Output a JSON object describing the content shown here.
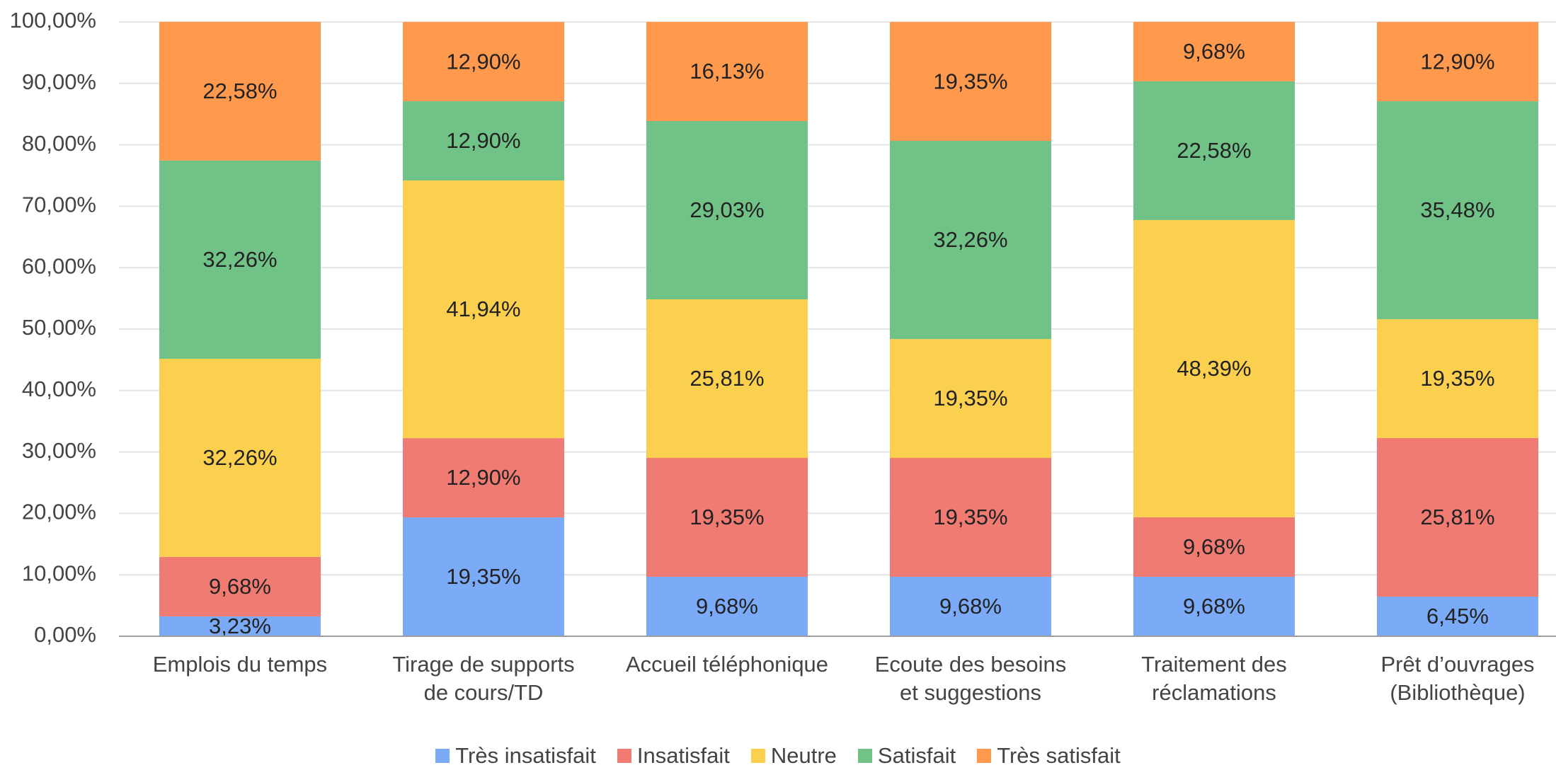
{
  "chart_data": {
    "type": "stacked_bar",
    "categories": [
      "Emplois du temps",
      "Tirage de supports de cours/TD",
      "Accueil téléphonique",
      "Ecoute des besoins et suggestions",
      "Traitement des réclamations",
      "Prêt d’ouvrages (Bibliothèque)"
    ],
    "series": [
      {
        "name": "Très insatisfait",
        "color": "#7baaf7",
        "values": [
          3.23,
          19.35,
          9.68,
          9.68,
          9.68,
          6.45
        ],
        "value_labels": [
          "3,23%",
          "19,35%",
          "9,68%",
          "9,68%",
          "9,68%",
          "6,45%"
        ]
      },
      {
        "name": "Insatisfait",
        "color": "#f07b72",
        "values": [
          9.68,
          12.9,
          19.35,
          19.35,
          9.68,
          25.81
        ],
        "value_labels": [
          "9,68%",
          "12,90%",
          "19,35%",
          "19,35%",
          "9,68%",
          "25,81%"
        ]
      },
      {
        "name": "Neutre",
        "color": "#fcd04f",
        "values": [
          32.26,
          41.94,
          25.81,
          19.35,
          48.39,
          19.35
        ],
        "value_labels": [
          "32,26%",
          "41,94%",
          "25,81%",
          "19,35%",
          "48,39%",
          "19,35%"
        ]
      },
      {
        "name": "Satisfait",
        "color": "#71c287",
        "values": [
          32.26,
          12.9,
          29.03,
          32.26,
          22.58,
          35.48
        ],
        "value_labels": [
          "32,26%",
          "12,90%",
          "29,03%",
          "32,26%",
          "22,58%",
          "35,48%"
        ]
      },
      {
        "name": "Très satisfait",
        "color": "#ff994d",
        "values": [
          22.58,
          12.9,
          16.13,
          19.35,
          9.68,
          12.9
        ],
        "value_labels": [
          "22,58%",
          "12,90%",
          "16,13%",
          "19,35%",
          "9,68%",
          "12,90%"
        ]
      }
    ],
    "ylim": [
      0,
      100
    ],
    "yticks": [
      {
        "value": 0,
        "label": "0,00%"
      },
      {
        "value": 10,
        "label": "10,00%"
      },
      {
        "value": 20,
        "label": "20,00%"
      },
      {
        "value": 30,
        "label": "30,00%"
      },
      {
        "value": 40,
        "label": "40,00%"
      },
      {
        "value": 50,
        "label": "50,00%"
      },
      {
        "value": 60,
        "label": "60,00%"
      },
      {
        "value": 70,
        "label": "70,00%"
      },
      {
        "value": 80,
        "label": "80,00%"
      },
      {
        "value": 90,
        "label": "90,00%"
      },
      {
        "value": 100,
        "label": "100,00%"
      }
    ],
    "grid": true,
    "legend": "bottom"
  }
}
